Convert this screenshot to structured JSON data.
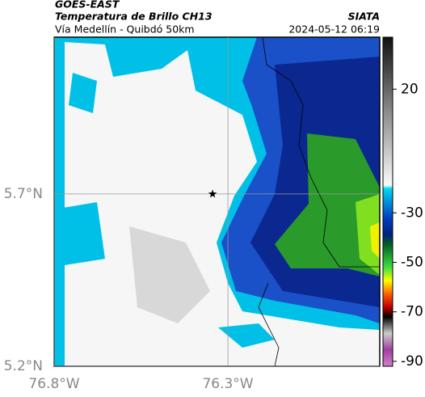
{
  "header": {
    "title": "GOES-EAST",
    "subtitle": "Temperatura de Brillo CH13",
    "route": "Vía Medellín - Quibdó 50km",
    "source": "SIATA",
    "timestamp": "2024-05-12 06:19"
  },
  "map": {
    "xlim": [
      -76.8,
      -75.863
    ],
    "ylim": [
      5.2,
      6.155
    ],
    "xticks": [
      {
        "value": -76.8,
        "label": "76.8°W"
      },
      {
        "value": -76.3,
        "label": "76.3°W"
      }
    ],
    "yticks": [
      {
        "value": 5.2,
        "label": "5.2°N"
      },
      {
        "value": 5.7,
        "label": "5.7°N"
      }
    ],
    "marker": {
      "lon": -76.344,
      "lat": 5.7
    }
  },
  "colorbar": {
    "lim": [
      -92,
      41
    ],
    "ticks": [
      20,
      -30,
      -50,
      -70,
      -90
    ]
  }
}
